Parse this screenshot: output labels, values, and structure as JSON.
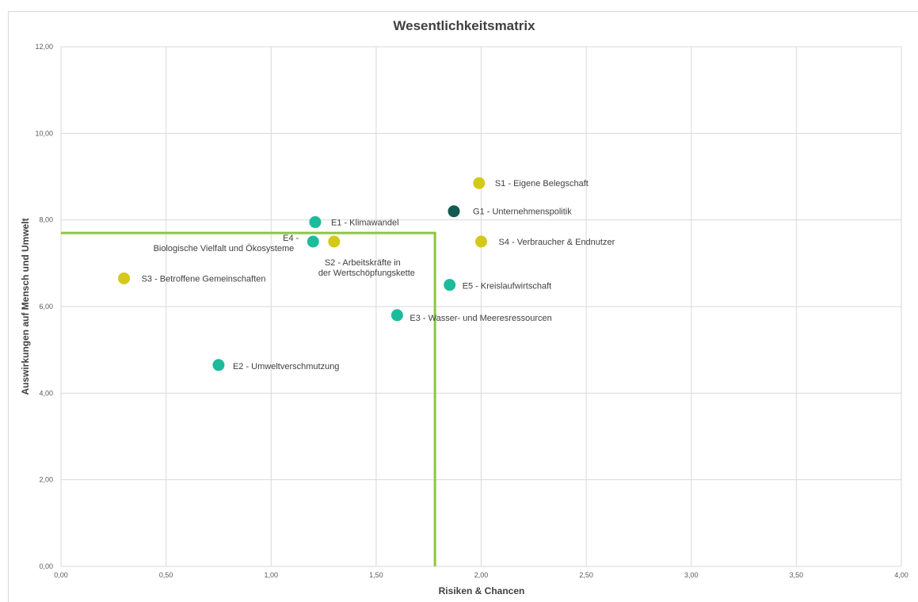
{
  "chart_data": {
    "type": "scatter",
    "title": "Wesentlichkeitsmatrix",
    "xlabel": "Risiken & Chancen",
    "ylabel": "Auswirkungen auf Mensch und Umwelt",
    "xlim": [
      0,
      4
    ],
    "ylim": [
      0,
      12
    ],
    "x_ticks": [
      "0,00",
      "0,50",
      "1,00",
      "1,50",
      "2,00",
      "2,50",
      "3,00",
      "3,50",
      "4,00"
    ],
    "y_ticks": [
      "0,00",
      "2,00",
      "4,00",
      "6,00",
      "8,00",
      "10,00",
      "12,00"
    ],
    "grid": true,
    "colors": {
      "environment": "#1abc9c",
      "social": "#d4c81a",
      "governance": "#145a50",
      "threshold": "#8cc63f"
    },
    "threshold": {
      "x": 1.78,
      "y": 7.7
    },
    "points": [
      {
        "label": "S1 - Eigene Belegschaft",
        "x": 1.99,
        "y": 8.85,
        "group": "social"
      },
      {
        "label": "G1 - Unternehmenspolitik",
        "x": 1.87,
        "y": 8.2,
        "group": "governance"
      },
      {
        "label": "E1 - Klimawandel",
        "x": 1.21,
        "y": 7.95,
        "group": "environment"
      },
      {
        "label": "E4 - Biologische Vielfalt und Ökosysteme",
        "x": 1.2,
        "y": 7.5,
        "group": "environment"
      },
      {
        "label": "S2 - Arbeitskräfte in der Wertschöpfungskette",
        "x": 1.3,
        "y": 7.5,
        "group": "social"
      },
      {
        "label": "S4 - Verbraucher & Endnutzer",
        "x": 2.0,
        "y": 7.5,
        "group": "social"
      },
      {
        "label": "S3 - Betroffene Gemeinschaften",
        "x": 0.3,
        "y": 6.65,
        "group": "social"
      },
      {
        "label": "E5 - Kreislaufwirtschaft",
        "x": 1.85,
        "y": 6.5,
        "group": "environment"
      },
      {
        "label": "E3 - Wasser- und Meeresressourcen",
        "x": 1.6,
        "y": 5.8,
        "group": "environment"
      },
      {
        "label": "E2 - Umweltverschmutzung",
        "x": 0.75,
        "y": 4.65,
        "group": "environment"
      }
    ]
  }
}
